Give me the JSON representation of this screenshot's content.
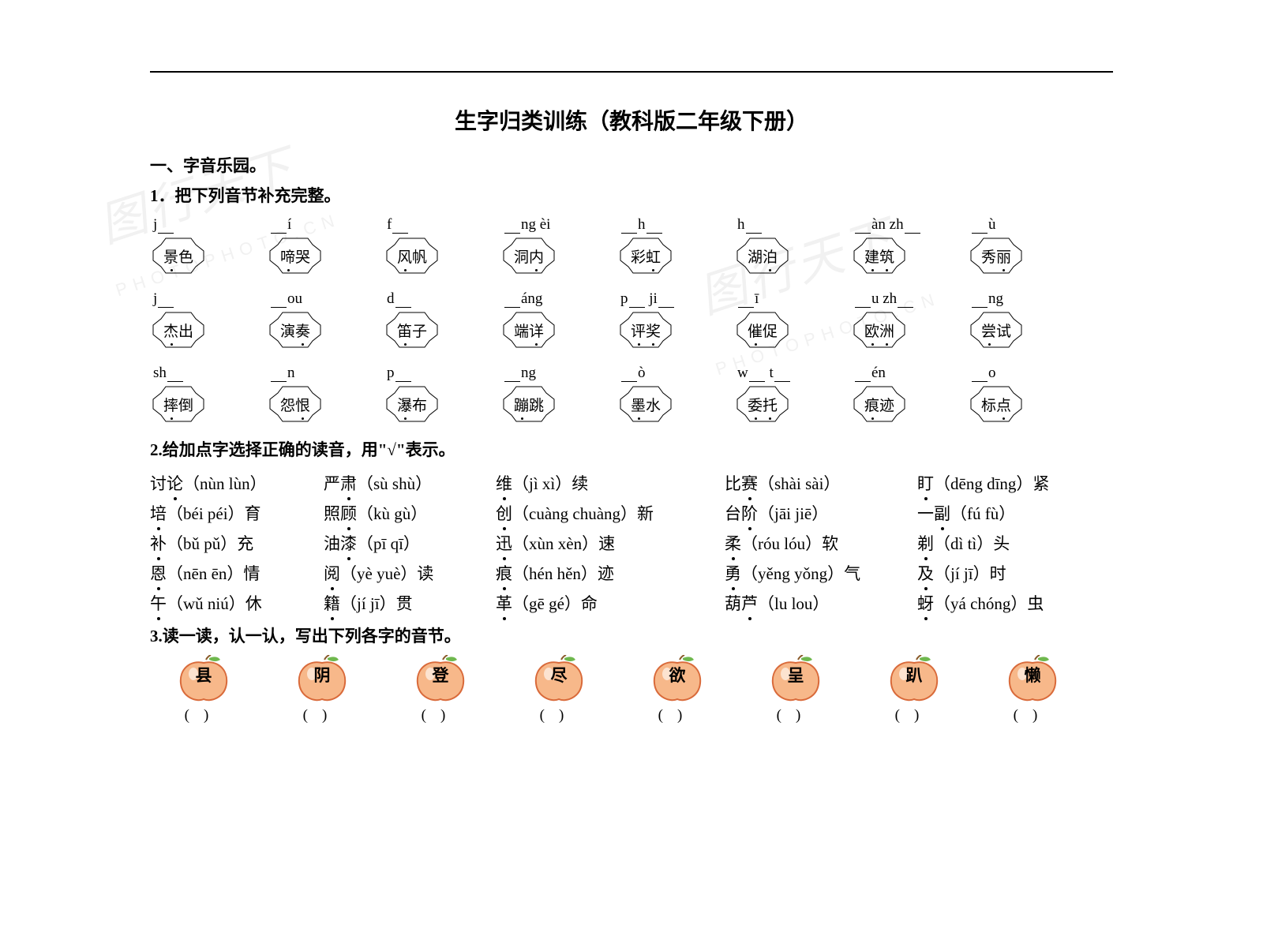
{
  "title": "生字归类训练（教科版二年级下册）",
  "section1_title": "一、字音乐园。",
  "q1_title": "1．把下列音节补充完整。",
  "star_rows": [
    {
      "pinyin": [
        "j___",
        "___í",
        "f___",
        "___ng  èi",
        "___h___",
        "h___",
        "___àn zh___",
        "___ù"
      ],
      "words": [
        "景色",
        "啼哭",
        "风帆",
        "洞内",
        "彩虹",
        "湖泊",
        "建筑",
        "秀丽"
      ],
      "dots": [
        0,
        0,
        0,
        1,
        1,
        1,
        99,
        1
      ]
    },
    {
      "pinyin": [
        "j___",
        "___ou",
        "d___",
        "___áng",
        "p___ ji___",
        "___ī",
        "___u zh___",
        "___ng"
      ],
      "words": [
        "杰出",
        "演奏",
        "笛子",
        "端详",
        "评奖",
        "催促",
        "欧洲",
        "尝试"
      ],
      "dots": [
        0,
        1,
        0,
        1,
        99,
        0,
        99,
        0
      ]
    },
    {
      "pinyin": [
        "sh___",
        "___n",
        "p___",
        "___ng",
        "___ò",
        "w___ t___",
        "___én",
        "___o"
      ],
      "words": [
        "摔倒",
        "怨恨",
        "瀑布",
        "蹦跳",
        "墨水",
        "委托",
        "痕迹",
        "标点"
      ],
      "dots": [
        0,
        1,
        0,
        0,
        0,
        99,
        0,
        1
      ]
    }
  ],
  "q2_title": "2.给加点字选择正确的读音，用\"√\"表示。",
  "choice_rows": [
    [
      {
        "pre": "讨",
        "dot": "论",
        "post": "（nùn  lùn）"
      },
      {
        "pre": "严",
        "dot": "肃",
        "post": "（sù  shù）"
      },
      {
        "pre": "",
        "dot": "维",
        "post": "（jì  xì）续"
      },
      {
        "pre": "比",
        "dot": "赛",
        "post": "（shài  sài）"
      },
      {
        "pre": "",
        "dot": "盯",
        "post": "（dēng  dīng）紧"
      }
    ],
    [
      {
        "pre": "",
        "dot": "培",
        "post": "（béi  péi）育"
      },
      {
        "pre": "照",
        "dot": "顾",
        "post": "（kù  gù）"
      },
      {
        "pre": "",
        "dot": "创",
        "post": "（cuàng  chuàng）新"
      },
      {
        "pre": "台",
        "dot": "阶",
        "post": "（jāi  jiē）"
      },
      {
        "pre": "一",
        "dot": "副",
        "post": "（fú  fù）"
      }
    ],
    [
      {
        "pre": "",
        "dot": "补",
        "post": "（bǔ  pǔ）充"
      },
      {
        "pre": "油",
        "dot": "漆",
        "post": "（pī  qī）"
      },
      {
        "pre": "",
        "dot": "迅",
        "post": "（xùn  xèn）速"
      },
      {
        "pre": "",
        "dot": "柔",
        "post": "（róu  lóu）软"
      },
      {
        "pre": "",
        "dot": "剃",
        "post": "（dì  tì）头"
      }
    ],
    [
      {
        "pre": "",
        "dot": "恩",
        "post": "（nēn  ēn）情"
      },
      {
        "pre": "",
        "dot": "阅",
        "post": "（yè  yuè）读"
      },
      {
        "pre": "",
        "dot": "痕",
        "post": "（hén  hěn）迹"
      },
      {
        "pre": "",
        "dot": "勇",
        "post": "（yěng  yǒng）气"
      },
      {
        "pre": "",
        "dot": "及",
        "post": "（jí  jī）时"
      }
    ],
    [
      {
        "pre": "",
        "dot": "午",
        "post": "（wǔ  niú）休"
      },
      {
        "pre": "",
        "dot": "籍",
        "post": "（jí  jī）贯"
      },
      {
        "pre": "",
        "dot": "革",
        "post": "（gē  gé）命"
      },
      {
        "pre": "葫",
        "dot": "芦",
        "post": "（lu  lou）"
      },
      {
        "pre": "",
        "dot": "蚜",
        "post": "（yá  chóng）虫"
      }
    ]
  ],
  "q3_title": "3.读一读，认一认，写出下列各字的音节。",
  "apples": [
    "县",
    "阴",
    "登",
    "尽",
    "欲",
    "呈",
    "趴",
    "懒"
  ],
  "colors": {
    "apple_fill": "#f7b88a",
    "apple_stroke": "#d96a3a",
    "apple_shadow": "#e8935f",
    "leaf": "#6fb84e",
    "stem": "#8a5a2a"
  },
  "watermark_main": "图行天下",
  "watermark_sub": "PHOTOPHOTO.CN"
}
